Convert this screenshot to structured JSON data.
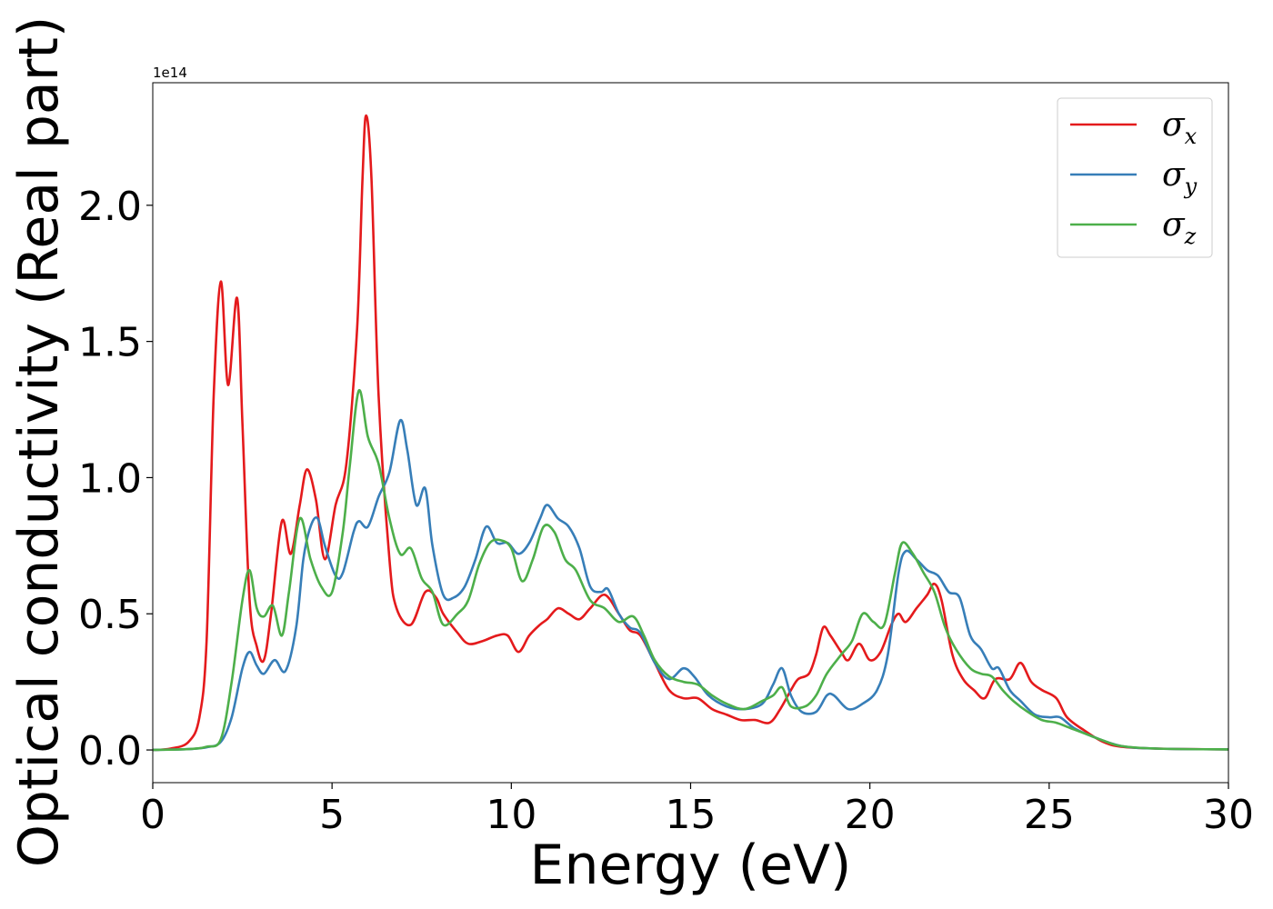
{
  "chart_data": {
    "type": "line",
    "xlabel": "Energy (eV)",
    "ylabel": "Optical conductivity (Real part)",
    "y_offset_label": "1e14",
    "xlim": [
      0,
      30
    ],
    "ylim": [
      -0.12,
      2.45
    ],
    "x_ticks": [
      0,
      5,
      10,
      15,
      20,
      25,
      30
    ],
    "x_tick_labels": [
      "0",
      "5",
      "10",
      "15",
      "20",
      "25",
      "30"
    ],
    "y_ticks": [
      0.0,
      0.5,
      1.0,
      1.5,
      2.0
    ],
    "y_tick_labels": [
      "0.0",
      "0.5",
      "1.0",
      "1.5",
      "2.0"
    ],
    "grid": false,
    "legend_position": "top-right",
    "series": [
      {
        "name": "σ",
        "subscript": "x",
        "color": "#e41a1c",
        "points": [
          [
            0,
            0
          ],
          [
            0.5,
            0.005
          ],
          [
            1.0,
            0.03
          ],
          [
            1.3,
            0.12
          ],
          [
            1.5,
            0.4
          ],
          [
            1.7,
            1.3
          ],
          [
            1.9,
            1.72
          ],
          [
            2.1,
            1.34
          ],
          [
            2.35,
            1.66
          ],
          [
            2.5,
            1.2
          ],
          [
            2.7,
            0.55
          ],
          [
            2.9,
            0.38
          ],
          [
            3.1,
            0.33
          ],
          [
            3.3,
            0.5
          ],
          [
            3.6,
            0.84
          ],
          [
            3.85,
            0.72
          ],
          [
            4.1,
            0.9
          ],
          [
            4.3,
            1.03
          ],
          [
            4.55,
            0.92
          ],
          [
            4.8,
            0.7
          ],
          [
            5.1,
            0.9
          ],
          [
            5.4,
            1.05
          ],
          [
            5.7,
            1.55
          ],
          [
            5.85,
            2.1
          ],
          [
            5.95,
            2.33
          ],
          [
            6.1,
            2.1
          ],
          [
            6.3,
            1.3
          ],
          [
            6.6,
            0.7
          ],
          [
            6.8,
            0.52
          ],
          [
            7.2,
            0.46
          ],
          [
            7.6,
            0.58
          ],
          [
            7.9,
            0.56
          ],
          [
            8.1,
            0.5
          ],
          [
            8.5,
            0.43
          ],
          [
            8.8,
            0.39
          ],
          [
            9.2,
            0.4
          ],
          [
            9.6,
            0.42
          ],
          [
            9.9,
            0.42
          ],
          [
            10.2,
            0.36
          ],
          [
            10.5,
            0.42
          ],
          [
            10.8,
            0.46
          ],
          [
            11.0,
            0.48
          ],
          [
            11.3,
            0.52
          ],
          [
            11.6,
            0.5
          ],
          [
            11.9,
            0.48
          ],
          [
            12.2,
            0.52
          ],
          [
            12.6,
            0.57
          ],
          [
            13.0,
            0.5
          ],
          [
            13.3,
            0.44
          ],
          [
            13.6,
            0.42
          ],
          [
            14.0,
            0.32
          ],
          [
            14.4,
            0.22
          ],
          [
            14.8,
            0.19
          ],
          [
            15.2,
            0.19
          ],
          [
            15.6,
            0.15
          ],
          [
            16.0,
            0.13
          ],
          [
            16.4,
            0.11
          ],
          [
            16.8,
            0.11
          ],
          [
            17.2,
            0.1
          ],
          [
            17.5,
            0.15
          ],
          [
            17.8,
            0.22
          ],
          [
            18.0,
            0.26
          ],
          [
            18.3,
            0.28
          ],
          [
            18.5,
            0.35
          ],
          [
            18.7,
            0.45
          ],
          [
            18.9,
            0.42
          ],
          [
            19.2,
            0.36
          ],
          [
            19.4,
            0.33
          ],
          [
            19.7,
            0.39
          ],
          [
            20.0,
            0.33
          ],
          [
            20.3,
            0.36
          ],
          [
            20.6,
            0.46
          ],
          [
            20.8,
            0.5
          ],
          [
            21.0,
            0.47
          ],
          [
            21.3,
            0.52
          ],
          [
            21.6,
            0.57
          ],
          [
            21.8,
            0.61
          ],
          [
            22.0,
            0.55
          ],
          [
            22.3,
            0.35
          ],
          [
            22.6,
            0.26
          ],
          [
            22.9,
            0.22
          ],
          [
            23.2,
            0.19
          ],
          [
            23.5,
            0.26
          ],
          [
            23.9,
            0.26
          ],
          [
            24.2,
            0.32
          ],
          [
            24.5,
            0.25
          ],
          [
            24.8,
            0.22
          ],
          [
            25.2,
            0.19
          ],
          [
            25.5,
            0.12
          ],
          [
            26.0,
            0.07
          ],
          [
            26.5,
            0.03
          ],
          [
            27.0,
            0.012
          ],
          [
            28,
            0.005
          ],
          [
            30,
            0.002
          ]
        ]
      },
      {
        "name": "σ",
        "subscript": "y",
        "color": "#377eb8",
        "points": [
          [
            0,
            0
          ],
          [
            1.0,
            0.003
          ],
          [
            1.5,
            0.01
          ],
          [
            1.9,
            0.03
          ],
          [
            2.2,
            0.12
          ],
          [
            2.5,
            0.3
          ],
          [
            2.7,
            0.36
          ],
          [
            2.9,
            0.31
          ],
          [
            3.1,
            0.28
          ],
          [
            3.4,
            0.33
          ],
          [
            3.7,
            0.29
          ],
          [
            4.0,
            0.45
          ],
          [
            4.2,
            0.7
          ],
          [
            4.4,
            0.82
          ],
          [
            4.6,
            0.85
          ],
          [
            4.8,
            0.75
          ],
          [
            5.1,
            0.64
          ],
          [
            5.3,
            0.65
          ],
          [
            5.6,
            0.8
          ],
          [
            5.75,
            0.84
          ],
          [
            6.0,
            0.82
          ],
          [
            6.3,
            0.93
          ],
          [
            6.6,
            1.02
          ],
          [
            6.9,
            1.21
          ],
          [
            7.1,
            1.1
          ],
          [
            7.35,
            0.9
          ],
          [
            7.6,
            0.96
          ],
          [
            7.8,
            0.75
          ],
          [
            8.1,
            0.57
          ],
          [
            8.4,
            0.56
          ],
          [
            8.7,
            0.6
          ],
          [
            9.0,
            0.7
          ],
          [
            9.3,
            0.82
          ],
          [
            9.6,
            0.76
          ],
          [
            9.9,
            0.76
          ],
          [
            10.2,
            0.72
          ],
          [
            10.5,
            0.76
          ],
          [
            10.8,
            0.85
          ],
          [
            11.0,
            0.9
          ],
          [
            11.3,
            0.85
          ],
          [
            11.6,
            0.82
          ],
          [
            11.9,
            0.74
          ],
          [
            12.2,
            0.6
          ],
          [
            12.5,
            0.58
          ],
          [
            12.7,
            0.59
          ],
          [
            13.0,
            0.5
          ],
          [
            13.3,
            0.45
          ],
          [
            13.6,
            0.43
          ],
          [
            14.0,
            0.32
          ],
          [
            14.4,
            0.26
          ],
          [
            14.8,
            0.3
          ],
          [
            15.1,
            0.27
          ],
          [
            15.5,
            0.2
          ],
          [
            16.0,
            0.16
          ],
          [
            16.5,
            0.15
          ],
          [
            17.0,
            0.17
          ],
          [
            17.3,
            0.24
          ],
          [
            17.55,
            0.3
          ],
          [
            17.8,
            0.2
          ],
          [
            18.1,
            0.14
          ],
          [
            18.5,
            0.14
          ],
          [
            18.8,
            0.2
          ],
          [
            19.0,
            0.2
          ],
          [
            19.4,
            0.15
          ],
          [
            19.8,
            0.17
          ],
          [
            20.2,
            0.22
          ],
          [
            20.5,
            0.35
          ],
          [
            20.8,
            0.65
          ],
          [
            21.0,
            0.73
          ],
          [
            21.3,
            0.7
          ],
          [
            21.6,
            0.66
          ],
          [
            21.9,
            0.64
          ],
          [
            22.2,
            0.58
          ],
          [
            22.5,
            0.56
          ],
          [
            22.8,
            0.42
          ],
          [
            23.1,
            0.37
          ],
          [
            23.4,
            0.3
          ],
          [
            23.6,
            0.3
          ],
          [
            23.9,
            0.22
          ],
          [
            24.2,
            0.18
          ],
          [
            24.6,
            0.13
          ],
          [
            25.0,
            0.12
          ],
          [
            25.3,
            0.12
          ],
          [
            25.7,
            0.08
          ],
          [
            26.2,
            0.05
          ],
          [
            27,
            0.015
          ],
          [
            28,
            0.005
          ],
          [
            30,
            0.002
          ]
        ]
      },
      {
        "name": "σ",
        "subscript": "z",
        "color": "#4daf4a",
        "points": [
          [
            0,
            0
          ],
          [
            1.0,
            0.003
          ],
          [
            1.5,
            0.012
          ],
          [
            1.9,
            0.04
          ],
          [
            2.2,
            0.25
          ],
          [
            2.5,
            0.55
          ],
          [
            2.7,
            0.66
          ],
          [
            2.9,
            0.52
          ],
          [
            3.1,
            0.49
          ],
          [
            3.35,
            0.53
          ],
          [
            3.6,
            0.42
          ],
          [
            3.8,
            0.58
          ],
          [
            4.1,
            0.85
          ],
          [
            4.4,
            0.7
          ],
          [
            4.7,
            0.6
          ],
          [
            5.0,
            0.58
          ],
          [
            5.3,
            0.8
          ],
          [
            5.5,
            1.05
          ],
          [
            5.75,
            1.32
          ],
          [
            6.0,
            1.15
          ],
          [
            6.3,
            1.05
          ],
          [
            6.6,
            0.85
          ],
          [
            6.9,
            0.72
          ],
          [
            7.2,
            0.74
          ],
          [
            7.5,
            0.63
          ],
          [
            7.8,
            0.58
          ],
          [
            8.1,
            0.46
          ],
          [
            8.5,
            0.5
          ],
          [
            8.8,
            0.55
          ],
          [
            9.1,
            0.68
          ],
          [
            9.4,
            0.76
          ],
          [
            9.7,
            0.77
          ],
          [
            10.0,
            0.74
          ],
          [
            10.3,
            0.62
          ],
          [
            10.6,
            0.7
          ],
          [
            10.9,
            0.82
          ],
          [
            11.2,
            0.8
          ],
          [
            11.5,
            0.7
          ],
          [
            11.8,
            0.66
          ],
          [
            12.2,
            0.55
          ],
          [
            12.6,
            0.52
          ],
          [
            13.0,
            0.47
          ],
          [
            13.4,
            0.49
          ],
          [
            13.7,
            0.42
          ],
          [
            14.0,
            0.33
          ],
          [
            14.4,
            0.27
          ],
          [
            14.8,
            0.25
          ],
          [
            15.2,
            0.24
          ],
          [
            15.6,
            0.2
          ],
          [
            16.0,
            0.17
          ],
          [
            16.5,
            0.15
          ],
          [
            17.0,
            0.18
          ],
          [
            17.3,
            0.2
          ],
          [
            17.55,
            0.23
          ],
          [
            17.8,
            0.16
          ],
          [
            18.2,
            0.16
          ],
          [
            18.5,
            0.2
          ],
          [
            18.8,
            0.28
          ],
          [
            19.2,
            0.35
          ],
          [
            19.5,
            0.4
          ],
          [
            19.8,
            0.5
          ],
          [
            20.1,
            0.47
          ],
          [
            20.4,
            0.46
          ],
          [
            20.7,
            0.65
          ],
          [
            20.9,
            0.76
          ],
          [
            21.2,
            0.72
          ],
          [
            21.5,
            0.65
          ],
          [
            21.8,
            0.58
          ],
          [
            22.1,
            0.45
          ],
          [
            22.4,
            0.37
          ],
          [
            22.8,
            0.3
          ],
          [
            23.1,
            0.28
          ],
          [
            23.4,
            0.27
          ],
          [
            23.7,
            0.22
          ],
          [
            24.0,
            0.18
          ],
          [
            24.4,
            0.14
          ],
          [
            24.8,
            0.11
          ],
          [
            25.2,
            0.1
          ],
          [
            25.6,
            0.08
          ],
          [
            26.0,
            0.06
          ],
          [
            26.5,
            0.035
          ],
          [
            27,
            0.015
          ],
          [
            28,
            0.005
          ],
          [
            30,
            0.002
          ]
        ]
      }
    ]
  }
}
